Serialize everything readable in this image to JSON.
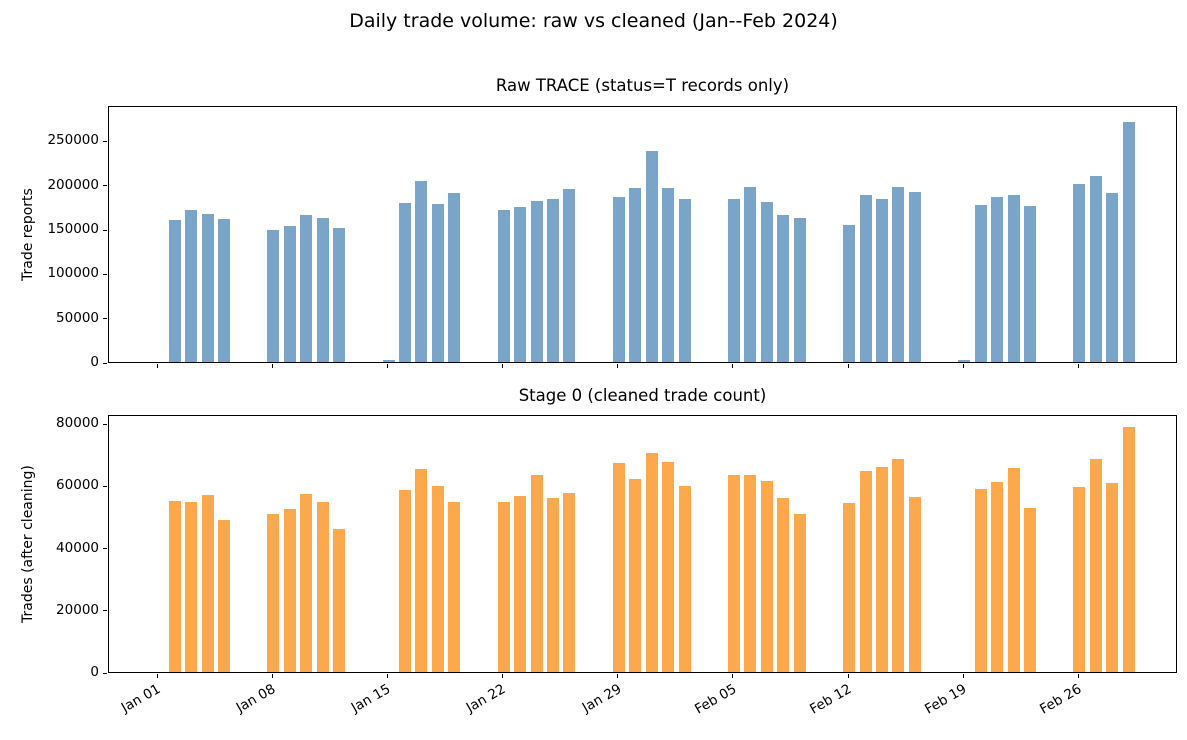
{
  "figure": {
    "title": "Daily trade volume: raw vs cleaned (Jan--Feb 2024)",
    "background": "#ffffff",
    "axis_color": "#000000"
  },
  "x_axis": {
    "tick_labels": [
      "Jan 01",
      "Jan 08",
      "Jan 15",
      "Jan 22",
      "Jan 29",
      "Feb 05",
      "Feb 12",
      "Feb 19",
      "Feb 26"
    ],
    "tick_days": [
      0,
      7,
      14,
      21,
      28,
      35,
      42,
      49,
      56
    ],
    "xlim_days": [
      -3,
      62
    ],
    "label_rotation_deg": 30
  },
  "chart_data": [
    {
      "type": "bar",
      "title": "Raw TRACE (status=T records only)",
      "ylabel": "Trade reports",
      "bar_color": "#7aa5c9",
      "ylim": [
        0,
        290000
      ],
      "yticks": [
        0,
        50000,
        100000,
        150000,
        200000,
        250000
      ],
      "grid": false,
      "categories": [
        "Jan 02",
        "Jan 03",
        "Jan 04",
        "Jan 05",
        "Jan 08",
        "Jan 09",
        "Jan 10",
        "Jan 11",
        "Jan 12",
        "Jan 15",
        "Jan 16",
        "Jan 17",
        "Jan 18",
        "Jan 19",
        "Jan 22",
        "Jan 23",
        "Jan 24",
        "Jan 25",
        "Jan 26",
        "Jan 29",
        "Jan 30",
        "Jan 31",
        "Feb 01",
        "Feb 02",
        "Feb 05",
        "Feb 06",
        "Feb 07",
        "Feb 08",
        "Feb 09",
        "Feb 12",
        "Feb 13",
        "Feb 14",
        "Feb 15",
        "Feb 16",
        "Feb 19",
        "Feb 20",
        "Feb 21",
        "Feb 22",
        "Feb 23",
        "Feb 26",
        "Feb 27",
        "Feb 28",
        "Feb 29"
      ],
      "x_days": [
        1,
        2,
        3,
        4,
        7,
        8,
        9,
        10,
        11,
        14,
        15,
        16,
        17,
        18,
        21,
        22,
        23,
        24,
        25,
        28,
        29,
        30,
        31,
        32,
        35,
        36,
        37,
        38,
        39,
        42,
        43,
        44,
        45,
        46,
        49,
        50,
        51,
        52,
        53,
        56,
        57,
        58,
        59
      ],
      "values": [
        160000,
        172000,
        167000,
        161000,
        149000,
        154000,
        166000,
        163000,
        151000,
        2800,
        179000,
        204000,
        178000,
        191000,
        171000,
        175000,
        182000,
        184000,
        195000,
        186000,
        196000,
        238000,
        196000,
        184000,
        184000,
        197000,
        180000,
        166000,
        163000,
        155000,
        189000,
        184000,
        198000,
        192000,
        2500,
        177000,
        186000,
        188000,
        176000,
        201000,
        210000,
        191000,
        271000
      ]
    },
    {
      "type": "bar",
      "title": "Stage 0 (cleaned trade count)",
      "ylabel": "Trades (after cleaning)",
      "bar_color": "#fba94c",
      "ylim": [
        0,
        83000
      ],
      "yticks": [
        0,
        20000,
        40000,
        60000,
        80000
      ],
      "grid": false,
      "categories": [
        "Jan 02",
        "Jan 03",
        "Jan 04",
        "Jan 05",
        "Jan 08",
        "Jan 09",
        "Jan 10",
        "Jan 11",
        "Jan 12",
        "Jan 15",
        "Jan 16",
        "Jan 17",
        "Jan 18",
        "Jan 19",
        "Jan 22",
        "Jan 23",
        "Jan 24",
        "Jan 25",
        "Jan 26",
        "Jan 29",
        "Jan 30",
        "Jan 31",
        "Feb 01",
        "Feb 02",
        "Feb 05",
        "Feb 06",
        "Feb 07",
        "Feb 08",
        "Feb 09",
        "Feb 12",
        "Feb 13",
        "Feb 14",
        "Feb 15",
        "Feb 16",
        "Feb 19",
        "Feb 20",
        "Feb 21",
        "Feb 22",
        "Feb 23",
        "Feb 26",
        "Feb 27",
        "Feb 28",
        "Feb 29"
      ],
      "x_days": [
        1,
        2,
        3,
        4,
        7,
        8,
        9,
        10,
        11,
        14,
        15,
        16,
        17,
        18,
        21,
        22,
        23,
        24,
        25,
        28,
        29,
        30,
        31,
        32,
        35,
        36,
        37,
        38,
        39,
        42,
        43,
        44,
        45,
        46,
        49,
        50,
        51,
        52,
        53,
        56,
        57,
        58,
        59
      ],
      "values": [
        55000,
        54600,
        56800,
        49000,
        50800,
        52300,
        57400,
        54600,
        46000,
        0,
        58400,
        65300,
        59700,
        54700,
        54600,
        56600,
        63400,
        56000,
        57600,
        67100,
        62200,
        70600,
        67700,
        59700,
        63300,
        63400,
        61400,
        55900,
        50900,
        54300,
        64600,
        65900,
        68500,
        56400,
        0,
        58800,
        61000,
        65500,
        52600,
        59600,
        68400,
        60900,
        78800
      ]
    }
  ]
}
